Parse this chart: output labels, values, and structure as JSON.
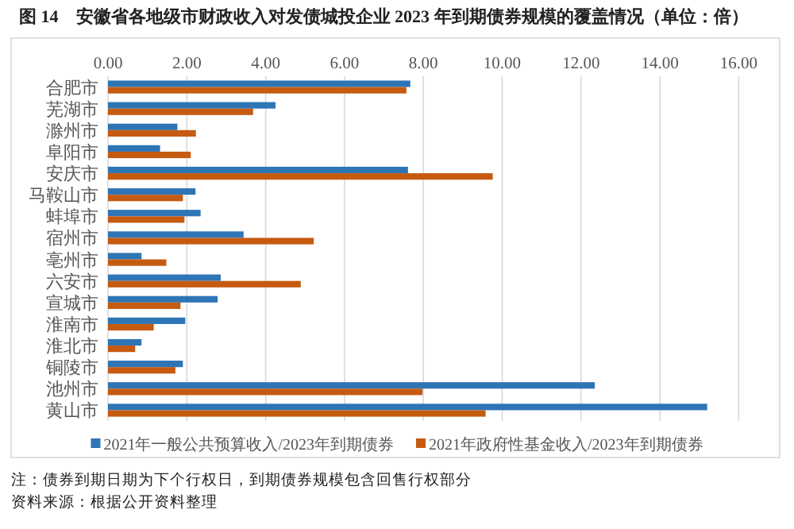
{
  "chart_data": {
    "type": "bar",
    "orientation": "horizontal",
    "title": "图 14　安徽省各地级市财政收入对发债城投企业 2023 年到期债券规模的覆盖情况（单位：倍）",
    "categories": [
      "合肥市",
      "芜湖市",
      "滁州市",
      "阜阳市",
      "安庆市",
      "马鞍山市",
      "蚌埠市",
      "宿州市",
      "亳州市",
      "六安市",
      "宣城市",
      "淮南市",
      "淮北市",
      "铜陵市",
      "池州市",
      "黄山市"
    ],
    "series": [
      {
        "name": "2021年一般公共预算收入/2023年到期债券",
        "color": "#2e75b6",
        "values": [
          7.67,
          4.25,
          1.76,
          1.32,
          7.61,
          2.22,
          2.35,
          3.44,
          0.85,
          2.86,
          2.78,
          1.96,
          0.85,
          1.9,
          12.35,
          15.2
        ]
      },
      {
        "name": "2021年政府性基金收入/2023年到期债券",
        "color": "#c55a11",
        "values": [
          7.57,
          3.68,
          2.23,
          2.1,
          9.76,
          1.9,
          1.94,
          5.22,
          1.48,
          4.89,
          1.84,
          1.16,
          0.69,
          1.71,
          7.98,
          9.58
        ]
      }
    ],
    "xlim": [
      0,
      17
    ],
    "xticks": [
      {
        "value": 0,
        "label": "0.00"
      },
      {
        "value": 2,
        "label": "2.00"
      },
      {
        "value": 4,
        "label": "4.00"
      },
      {
        "value": 6,
        "label": "6.00"
      },
      {
        "value": 8,
        "label": "8.00"
      },
      {
        "value": 10,
        "label": "10.00"
      },
      {
        "value": 12,
        "label": "12.00"
      },
      {
        "value": 14,
        "label": "14.00"
      },
      {
        "value": 16,
        "label": "16.00"
      }
    ],
    "grid": "x",
    "legend": "bottom",
    "annotations": [
      "注：债券到期日期为下个行权日，到期债券规模包含回售行权部分",
      "资料来源：根据公开资料整理"
    ]
  }
}
